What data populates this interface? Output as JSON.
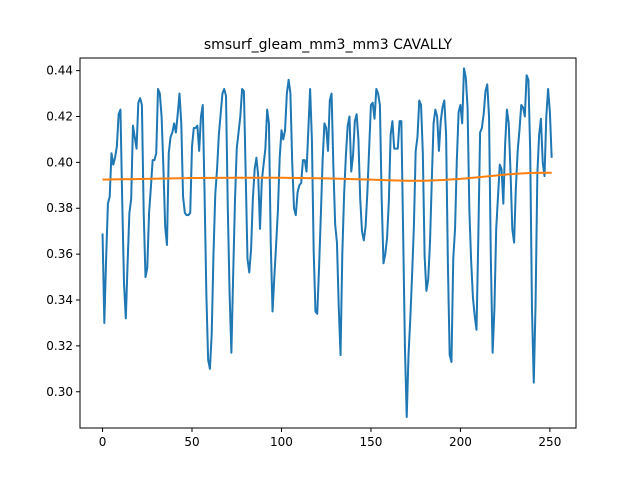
{
  "chart_data": {
    "type": "line",
    "title": "smsurf_gleam_mm3_mm3 CAVALLY",
    "xlabel": "",
    "ylabel": "",
    "xlim": [
      -12.6,
      264.6
    ],
    "ylim": [
      0.2842,
      0.4455
    ],
    "x_ticks": [
      0,
      50,
      100,
      150,
      200,
      250
    ],
    "y_ticks": [
      0.3,
      0.32,
      0.34,
      0.36,
      0.38,
      0.4,
      0.42,
      0.44
    ],
    "x_tick_labels": [
      "0",
      "50",
      "100",
      "150",
      "200",
      "250"
    ],
    "y_tick_labels": [
      "0.30",
      "0.32",
      "0.34",
      "0.36",
      "0.38",
      "0.40",
      "0.42",
      "0.44"
    ],
    "grid": false,
    "series": [
      {
        "color": "#1f77b4",
        "points": [
          [
            0,
            0.369
          ],
          [
            1,
            0.33
          ],
          [
            2,
            0.358
          ],
          [
            3,
            0.382
          ],
          [
            4,
            0.385
          ],
          [
            5,
            0.404
          ],
          [
            6,
            0.399
          ],
          [
            7,
            0.402
          ],
          [
            8,
            0.407
          ],
          [
            9,
            0.421
          ],
          [
            10,
            0.423
          ],
          [
            11,
            0.383
          ],
          [
            12,
            0.347
          ],
          [
            13,
            0.332
          ],
          [
            14,
            0.356
          ],
          [
            15,
            0.378
          ],
          [
            16,
            0.384
          ],
          [
            17,
            0.416
          ],
          [
            18,
            0.411
          ],
          [
            19,
            0.406
          ],
          [
            20,
            0.426
          ],
          [
            21,
            0.428
          ],
          [
            22,
            0.425
          ],
          [
            23,
            0.378
          ],
          [
            24,
            0.35
          ],
          [
            25,
            0.354
          ],
          [
            26,
            0.378
          ],
          [
            27,
            0.389
          ],
          [
            28,
            0.401
          ],
          [
            29,
            0.401
          ],
          [
            30,
            0.404
          ],
          [
            31,
            0.432
          ],
          [
            32,
            0.43
          ],
          [
            33,
            0.42
          ],
          [
            34,
            0.398
          ],
          [
            35,
            0.372
          ],
          [
            36,
            0.364
          ],
          [
            37,
            0.404
          ],
          [
            38,
            0.411
          ],
          [
            39,
            0.413
          ],
          [
            40,
            0.417
          ],
          [
            41,
            0.413
          ],
          [
            42,
            0.421
          ],
          [
            43,
            0.43
          ],
          [
            44,
            0.417
          ],
          [
            45,
            0.385
          ],
          [
            46,
            0.378
          ],
          [
            47,
            0.377
          ],
          [
            48,
            0.377
          ],
          [
            49,
            0.378
          ],
          [
            50,
            0.407
          ],
          [
            51,
            0.415
          ],
          [
            52,
            0.415
          ],
          [
            53,
            0.416
          ],
          [
            54,
            0.405
          ],
          [
            55,
            0.42
          ],
          [
            56,
            0.425
          ],
          [
            57,
            0.387
          ],
          [
            58,
            0.343
          ],
          [
            59,
            0.314
          ],
          [
            60,
            0.31
          ],
          [
            61,
            0.325
          ],
          [
            62,
            0.36
          ],
          [
            63,
            0.386
          ],
          [
            64,
            0.397
          ],
          [
            65,
            0.412
          ],
          [
            66,
            0.421
          ],
          [
            67,
            0.43
          ],
          [
            68,
            0.432
          ],
          [
            69,
            0.429
          ],
          [
            70,
            0.38
          ],
          [
            71,
            0.343
          ],
          [
            72,
            0.317
          ],
          [
            73,
            0.351
          ],
          [
            74,
            0.383
          ],
          [
            75,
            0.406
          ],
          [
            76,
            0.413
          ],
          [
            77,
            0.42
          ],
          [
            78,
            0.432
          ],
          [
            79,
            0.431
          ],
          [
            80,
            0.395
          ],
          [
            81,
            0.358
          ],
          [
            82,
            0.352
          ],
          [
            83,
            0.362
          ],
          [
            84,
            0.384
          ],
          [
            85,
            0.397
          ],
          [
            86,
            0.402
          ],
          [
            87,
            0.394
          ],
          [
            88,
            0.371
          ],
          [
            89,
            0.392
          ],
          [
            90,
            0.399
          ],
          [
            91,
            0.406
          ],
          [
            92,
            0.423
          ],
          [
            93,
            0.417
          ],
          [
            94,
            0.365
          ],
          [
            95,
            0.335
          ],
          [
            96,
            0.35
          ],
          [
            97,
            0.364
          ],
          [
            98,
            0.379
          ],
          [
            99,
            0.402
          ],
          [
            100,
            0.414
          ],
          [
            101,
            0.41
          ],
          [
            102,
            0.414
          ],
          [
            103,
            0.43
          ],
          [
            104,
            0.436
          ],
          [
            105,
            0.43
          ],
          [
            106,
            0.4
          ],
          [
            107,
            0.38
          ],
          [
            108,
            0.377
          ],
          [
            109,
            0.387
          ],
          [
            110,
            0.39
          ],
          [
            111,
            0.391
          ],
          [
            112,
            0.401
          ],
          [
            113,
            0.401
          ],
          [
            114,
            0.396
          ],
          [
            115,
            0.414
          ],
          [
            116,
            0.432
          ],
          [
            117,
            0.41
          ],
          [
            118,
            0.361
          ],
          [
            119,
            0.335
          ],
          [
            120,
            0.334
          ],
          [
            121,
            0.354
          ],
          [
            122,
            0.377
          ],
          [
            123,
            0.401
          ],
          [
            124,
            0.417
          ],
          [
            125,
            0.415
          ],
          [
            126,
            0.405
          ],
          [
            127,
            0.427
          ],
          [
            128,
            0.43
          ],
          [
            129,
            0.398
          ],
          [
            130,
            0.373
          ],
          [
            131,
            0.365
          ],
          [
            132,
            0.337
          ],
          [
            133,
            0.316
          ],
          [
            134,
            0.36
          ],
          [
            135,
            0.386
          ],
          [
            136,
            0.403
          ],
          [
            137,
            0.416
          ],
          [
            138,
            0.42
          ],
          [
            139,
            0.396
          ],
          [
            140,
            0.403
          ],
          [
            141,
            0.418
          ],
          [
            142,
            0.421
          ],
          [
            143,
            0.41
          ],
          [
            144,
            0.384
          ],
          [
            145,
            0.37
          ],
          [
            146,
            0.366
          ],
          [
            147,
            0.372
          ],
          [
            148,
            0.387
          ],
          [
            149,
            0.406
          ],
          [
            150,
            0.425
          ],
          [
            151,
            0.426
          ],
          [
            152,
            0.419
          ],
          [
            153,
            0.432
          ],
          [
            154,
            0.43
          ],
          [
            155,
            0.425
          ],
          [
            156,
            0.384
          ],
          [
            157,
            0.356
          ],
          [
            158,
            0.36
          ],
          [
            159,
            0.367
          ],
          [
            160,
            0.383
          ],
          [
            161,
            0.412
          ],
          [
            162,
            0.418
          ],
          [
            163,
            0.406
          ],
          [
            164,
            0.406
          ],
          [
            165,
            0.406
          ],
          [
            166,
            0.418
          ],
          [
            167,
            0.418
          ],
          [
            168,
            0.369
          ],
          [
            169,
            0.319
          ],
          [
            170,
            0.289
          ],
          [
            171,
            0.316
          ],
          [
            172,
            0.332
          ],
          [
            173,
            0.351
          ],
          [
            174,
            0.372
          ],
          [
            175,
            0.405
          ],
          [
            176,
            0.411
          ],
          [
            177,
            0.427
          ],
          [
            178,
            0.425
          ],
          [
            179,
            0.404
          ],
          [
            180,
            0.359
          ],
          [
            181,
            0.344
          ],
          [
            182,
            0.349
          ],
          [
            183,
            0.365
          ],
          [
            184,
            0.392
          ],
          [
            185,
            0.417
          ],
          [
            186,
            0.423
          ],
          [
            187,
            0.42
          ],
          [
            188,
            0.405
          ],
          [
            189,
            0.418
          ],
          [
            190,
            0.424
          ],
          [
            191,
            0.427
          ],
          [
            192,
            0.412
          ],
          [
            193,
            0.356
          ],
          [
            194,
            0.316
          ],
          [
            195,
            0.313
          ],
          [
            196,
            0.358
          ],
          [
            197,
            0.371
          ],
          [
            198,
            0.401
          ],
          [
            199,
            0.422
          ],
          [
            200,
            0.425
          ],
          [
            201,
            0.417
          ],
          [
            202,
            0.441
          ],
          [
            203,
            0.437
          ],
          [
            204,
            0.424
          ],
          [
            205,
            0.379
          ],
          [
            206,
            0.357
          ],
          [
            207,
            0.341
          ],
          [
            208,
            0.333
          ],
          [
            209,
            0.327
          ],
          [
            210,
            0.367
          ],
          [
            211,
            0.413
          ],
          [
            212,
            0.415
          ],
          [
            213,
            0.421
          ],
          [
            214,
            0.431
          ],
          [
            215,
            0.434
          ],
          [
            216,
            0.42
          ],
          [
            217,
            0.358
          ],
          [
            218,
            0.317
          ],
          [
            219,
            0.336
          ],
          [
            220,
            0.371
          ],
          [
            221,
            0.385
          ],
          [
            222,
            0.399
          ],
          [
            223,
            0.397
          ],
          [
            224,
            0.382
          ],
          [
            225,
            0.408
          ],
          [
            226,
            0.423
          ],
          [
            227,
            0.417
          ],
          [
            228,
            0.396
          ],
          [
            229,
            0.371
          ],
          [
            230,
            0.365
          ],
          [
            231,
            0.389
          ],
          [
            232,
            0.405
          ],
          [
            233,
            0.414
          ],
          [
            234,
            0.425
          ],
          [
            235,
            0.424
          ],
          [
            236,
            0.42
          ],
          [
            237,
            0.438
          ],
          [
            238,
            0.436
          ],
          [
            239,
            0.405
          ],
          [
            240,
            0.336
          ],
          [
            241,
            0.304
          ],
          [
            242,
            0.338
          ],
          [
            243,
            0.395
          ],
          [
            244,
            0.412
          ],
          [
            245,
            0.419
          ],
          [
            246,
            0.4
          ],
          [
            247,
            0.394
          ],
          [
            248,
            0.42
          ],
          [
            249,
            0.432
          ],
          [
            250,
            0.422
          ],
          [
            251,
            0.402
          ]
        ]
      },
      {
        "color": "#ff7f0e",
        "points": [
          [
            0,
            0.3925
          ],
          [
            25,
            0.3928
          ],
          [
            50,
            0.3932
          ],
          [
            75,
            0.3933
          ],
          [
            100,
            0.3933
          ],
          [
            125,
            0.393
          ],
          [
            150,
            0.3925
          ],
          [
            160,
            0.3922
          ],
          [
            170,
            0.392
          ],
          [
            180,
            0.392
          ],
          [
            190,
            0.3923
          ],
          [
            200,
            0.3928
          ],
          [
            210,
            0.3935
          ],
          [
            220,
            0.3943
          ],
          [
            230,
            0.395
          ],
          [
            240,
            0.3954
          ],
          [
            251,
            0.3955
          ]
        ]
      }
    ]
  }
}
